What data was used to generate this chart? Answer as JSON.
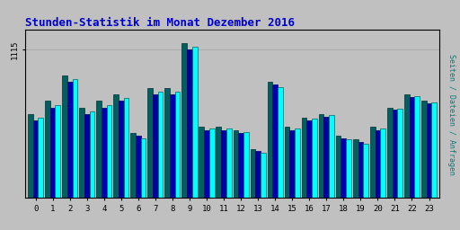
{
  "title": "Stunden-Statistik im Monat Dezember 2016",
  "title_color": "#0000CC",
  "title_fontsize": 9,
  "ylabel": "1115",
  "right_label": "Seiten / Dateien / Anfragen",
  "right_label_color": "#008080",
  "xlabel_vals": [
    0,
    1,
    2,
    3,
    4,
    5,
    6,
    7,
    8,
    9,
    10,
    11,
    12,
    13,
    14,
    15,
    16,
    17,
    18,
    19,
    20,
    21,
    22,
    23
  ],
  "bar_colors": [
    "#006060",
    "#0000AA",
    "#00FFFF"
  ],
  "background_color": "#C0C0C0",
  "plot_bg_color": "#C0C0C0",
  "border_color": "#000000",
  "series_teal": [
    1065,
    1075,
    1095,
    1070,
    1075,
    1080,
    1050,
    1085,
    1085,
    1120,
    1055,
    1055,
    1052,
    1038,
    1090,
    1055,
    1062,
    1065,
    1048,
    1045,
    1055,
    1070,
    1080,
    1075
  ],
  "series_blue": [
    1060,
    1070,
    1090,
    1065,
    1070,
    1075,
    1048,
    1080,
    1080,
    1115,
    1052,
    1052,
    1050,
    1036,
    1088,
    1052,
    1060,
    1063,
    1046,
    1043,
    1052,
    1068,
    1078,
    1073
  ],
  "series_cyan": [
    1062,
    1072,
    1092,
    1067,
    1072,
    1077,
    1046,
    1082,
    1082,
    1117,
    1054,
    1054,
    1051,
    1035,
    1086,
    1054,
    1061,
    1064,
    1045,
    1042,
    1054,
    1069,
    1079,
    1074
  ],
  "ylim_min": 1000,
  "ylim_max": 1130,
  "yticks": [
    1115
  ],
  "grid_color": "#AAAAAA",
  "font_family": "monospace",
  "bar_width": 0.3
}
